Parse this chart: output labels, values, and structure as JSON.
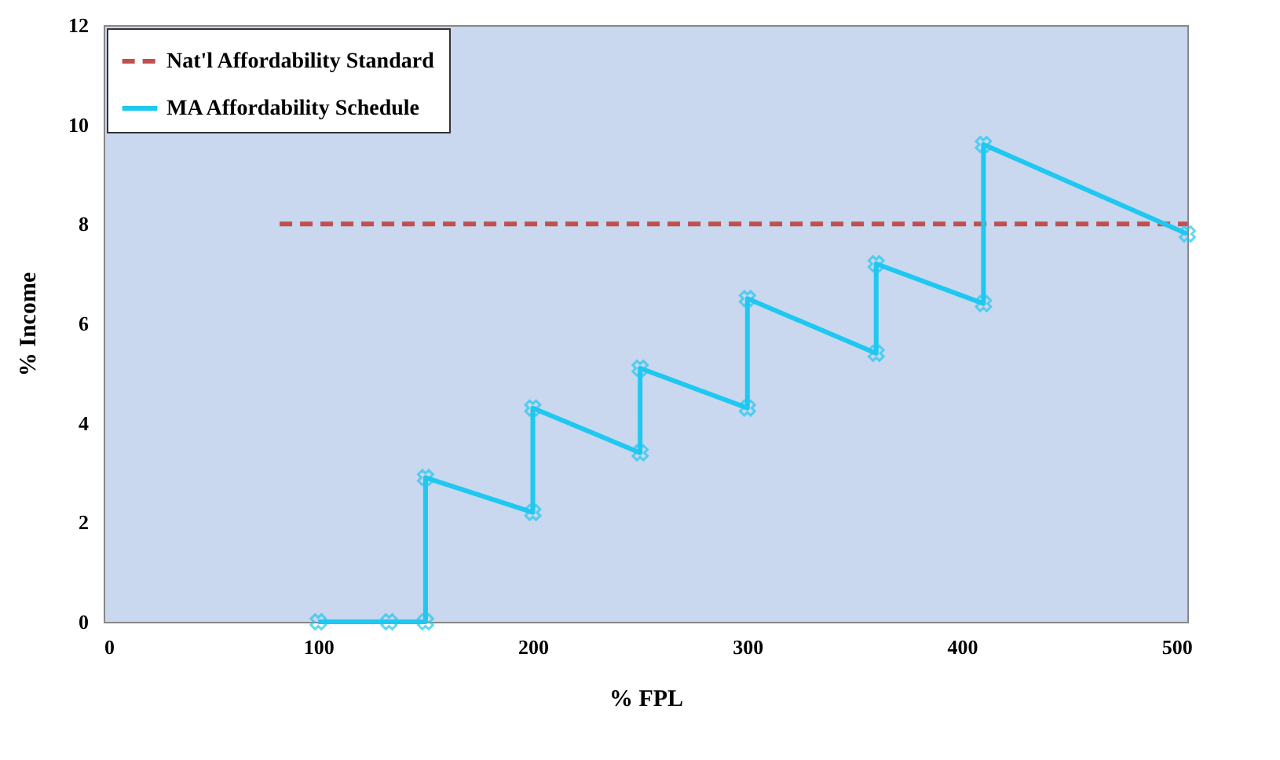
{
  "chart_data": {
    "type": "line",
    "xlabel": "% FPL",
    "ylabel": "% Income",
    "xlim": [
      0,
      505
    ],
    "xticks": [
      0,
      100,
      200,
      300,
      400,
      500
    ],
    "ylim": [
      0,
      12
    ],
    "yticks": [
      0,
      2,
      4,
      6,
      8,
      10,
      12
    ],
    "grid": false,
    "legend": "top left",
    "series": [
      {
        "name": "Nat'l Affordability Standard",
        "color": "#c0504d",
        "line_style": "dashed",
        "marker": "none",
        "x": [
          82,
          505
        ],
        "values": [
          8,
          8
        ]
      },
      {
        "name": "MA Affordability Schedule",
        "color": "#1ec8f0",
        "line_style": "solid",
        "marker": "cross",
        "x": [
          100,
          133,
          150,
          150,
          200,
          200,
          250,
          250,
          300,
          300,
          360,
          360,
          410,
          410,
          505
        ],
        "values": [
          0,
          0,
          0,
          2.9,
          2.2,
          4.3,
          3.4,
          5.1,
          4.3,
          6.5,
          5.4,
          7.2,
          6.4,
          9.6,
          7.8
        ]
      }
    ]
  }
}
